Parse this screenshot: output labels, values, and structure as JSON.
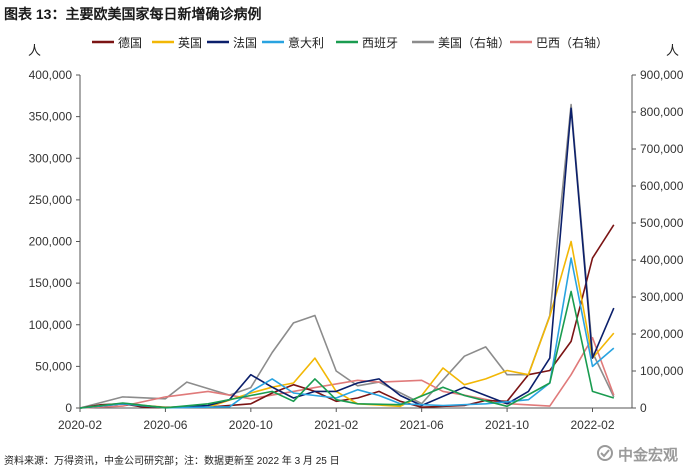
{
  "header": {
    "title": "图表 13：主要欧美国家每日新增确诊病例"
  },
  "footer": {
    "source": "资料来源：万得资讯，中金公司研究部；注：数据更新至 2022 年 3 月 25 日"
  },
  "watermark": {
    "text": "中金宏观"
  },
  "chart_data": {
    "type": "line",
    "ylabel_left": "人",
    "ylabel_right": "人",
    "ylim_left": [
      0,
      400000
    ],
    "ylim_right": [
      0,
      900000
    ],
    "yticks_left": [
      "0",
      "50,000",
      "100,000",
      "150,000",
      "200,000",
      "250,000",
      "300,000",
      "350,000",
      "400,000"
    ],
    "yticks_right": [
      "0",
      "100,000",
      "200,000",
      "300,000",
      "400,000",
      "500,000",
      "600,000",
      "700,000",
      "800,000",
      "900,000"
    ],
    "xlim": [
      "2020-02",
      "2022-03"
    ],
    "xticks": [
      "2020-02",
      "2020-06",
      "2020-10",
      "2021-02",
      "2021-06",
      "2021-10",
      "2022-02"
    ],
    "legend_position": "top",
    "series": [
      {
        "name": "德国",
        "color": "#7b1414",
        "axis": "left",
        "x": [
          "2020-02",
          "2020-03",
          "2020-04",
          "2020-05",
          "2020-06",
          "2020-08",
          "2020-10",
          "2020-11",
          "2020-12",
          "2021-01",
          "2021-02",
          "2021-03",
          "2021-04",
          "2021-05",
          "2021-06",
          "2021-08",
          "2021-09",
          "2021-10",
          "2021-11",
          "2021-12",
          "2022-01",
          "2022-02",
          "2022-03"
        ],
        "values": [
          0,
          4000,
          5000,
          1000,
          500,
          1000,
          5000,
          18000,
          28000,
          20000,
          8000,
          12000,
          20000,
          8000,
          1000,
          3000,
          9000,
          8000,
          40000,
          45000,
          80000,
          180000,
          220000
        ]
      },
      {
        "name": "英国",
        "color": "#f2b705",
        "axis": "left",
        "x": [
          "2020-02",
          "2020-04",
          "2020-06",
          "2020-08",
          "2020-10",
          "2020-11",
          "2020-12",
          "2021-01",
          "2021-02",
          "2021-03",
          "2021-05",
          "2021-06",
          "2021-07",
          "2021-08",
          "2021-09",
          "2021-10",
          "2021-11",
          "2021-12",
          "2022-01",
          "2022-02",
          "2022-03"
        ],
        "values": [
          0,
          5000,
          1000,
          1000,
          18000,
          25000,
          30000,
          60000,
          20000,
          5000,
          2000,
          15000,
          48000,
          28000,
          35000,
          45000,
          40000,
          110000,
          200000,
          60000,
          90000
        ]
      },
      {
        "name": "法国",
        "color": "#0b1f6b",
        "axis": "left",
        "x": [
          "2020-02",
          "2020-04",
          "2020-06",
          "2020-08",
          "2020-09",
          "2020-10",
          "2020-11",
          "2020-12",
          "2021-01",
          "2021-02",
          "2021-03",
          "2021-04",
          "2021-05",
          "2021-06",
          "2021-08",
          "2021-10",
          "2021-11",
          "2021-12",
          "2022-01",
          "2022-02",
          "2022-03"
        ],
        "values": [
          0,
          5000,
          500,
          3000,
          10000,
          40000,
          25000,
          12000,
          20000,
          20000,
          30000,
          35000,
          15000,
          3000,
          25000,
          5000,
          20000,
          60000,
          360000,
          60000,
          120000
        ]
      },
      {
        "name": "意大利",
        "color": "#29a3e0",
        "axis": "left",
        "x": [
          "2020-02",
          "2020-04",
          "2020-06",
          "2020-09",
          "2020-10",
          "2020-11",
          "2020-12",
          "2021-01",
          "2021-02",
          "2021-03",
          "2021-04",
          "2021-05",
          "2021-07",
          "2021-09",
          "2021-11",
          "2021-12",
          "2022-01",
          "2022-02",
          "2022-03"
        ],
        "values": [
          0,
          5000,
          300,
          1500,
          20000,
          35000,
          18000,
          15000,
          12000,
          22000,
          15000,
          5000,
          3000,
          5000,
          10000,
          30000,
          180000,
          50000,
          72000
        ]
      },
      {
        "name": "西班牙",
        "color": "#1a9c50",
        "axis": "left",
        "x": [
          "2020-02",
          "2020-04",
          "2020-06",
          "2020-08",
          "2020-10",
          "2020-11",
          "2020-12",
          "2021-01",
          "2021-02",
          "2021-03",
          "2021-05",
          "2021-07",
          "2021-08",
          "2021-10",
          "2021-12",
          "2022-01",
          "2022-02",
          "2022-03"
        ],
        "values": [
          0,
          6000,
          300,
          5000,
          15000,
          20000,
          8000,
          35000,
          10000,
          5000,
          4000,
          25000,
          15000,
          2000,
          30000,
          140000,
          20000,
          12000
        ]
      },
      {
        "name": "美国（右轴）",
        "color": "#8c8c8c",
        "axis": "right",
        "x": [
          "2020-02",
          "2020-04",
          "2020-06",
          "2020-07",
          "2020-09",
          "2020-10",
          "2020-11",
          "2020-12",
          "2021-01",
          "2021-02",
          "2021-03",
          "2021-04",
          "2021-06",
          "2021-08",
          "2021-09",
          "2021-10",
          "2021-11",
          "2021-12",
          "2022-01",
          "2022-02",
          "2022-03"
        ],
        "values": [
          0,
          30000,
          25000,
          70000,
          35000,
          55000,
          150000,
          230000,
          250000,
          100000,
          60000,
          70000,
          12000,
          140000,
          165000,
          90000,
          90000,
          250000,
          820000,
          150000,
          30000
        ]
      },
      {
        "name": "巴西（右轴）",
        "color": "#e07a7a",
        "axis": "right",
        "x": [
          "2020-02",
          "2020-04",
          "2020-06",
          "2020-08",
          "2020-10",
          "2020-12",
          "2021-01",
          "2021-03",
          "2021-04",
          "2021-06",
          "2021-07",
          "2021-08",
          "2021-10",
          "2021-12",
          "2022-01",
          "2022-02",
          "2022-03"
        ],
        "values": [
          0,
          5000,
          30000,
          45000,
          25000,
          45000,
          55000,
          75000,
          70000,
          75000,
          45000,
          35000,
          12000,
          5000,
          90000,
          190000,
          35000
        ]
      }
    ]
  }
}
